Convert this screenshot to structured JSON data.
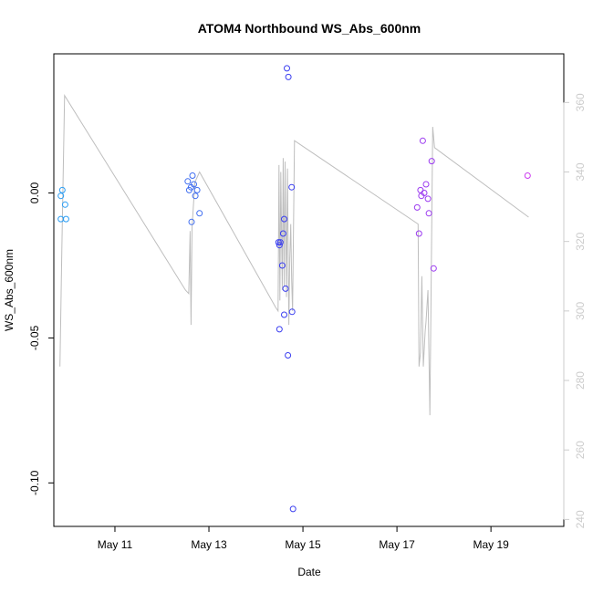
{
  "chart_data": {
    "type": "scatter",
    "title": "ATOM4 Northbound WS_Abs_600nm",
    "xlabel": "Date",
    "ylabel": "WS_Abs_600nm",
    "xlim": [
      9.7,
      20.55
    ],
    "ylim": [
      -0.115,
      0.048
    ],
    "y2lim": [
      238,
      374
    ],
    "x_ticks": [
      {
        "value": 11,
        "label": "May 11"
      },
      {
        "value": 13,
        "label": "May 13"
      },
      {
        "value": 15,
        "label": "May 15"
      },
      {
        "value": 17,
        "label": "May 17"
      },
      {
        "value": 19,
        "label": "May 19"
      }
    ],
    "y_ticks": [
      {
        "value": 0.0,
        "label": "0.00"
      },
      {
        "value": -0.05,
        "label": "-0.05"
      },
      {
        "value": -0.1,
        "label": "-0.10"
      }
    ],
    "y2_ticks": [
      {
        "value": 240,
        "label": "240"
      },
      {
        "value": 260,
        "label": "260"
      },
      {
        "value": 280,
        "label": "280"
      },
      {
        "value": 300,
        "label": "300"
      },
      {
        "value": 320,
        "label": "320"
      },
      {
        "value": 340,
        "label": "340"
      },
      {
        "value": 360,
        "label": "360"
      }
    ],
    "right_axis_color": "#cccccc",
    "line_color": "#bebebe",
    "grid": false,
    "points": [
      {
        "x": 9.85,
        "y": -0.009,
        "color": "#2a9df4"
      },
      {
        "x": 9.85,
        "y": -0.001,
        "color": "#2a9df4"
      },
      {
        "x": 9.88,
        "y": 0.001,
        "color": "#2a9df4"
      },
      {
        "x": 9.94,
        "y": -0.004,
        "color": "#2a9df4"
      },
      {
        "x": 9.96,
        "y": -0.009,
        "color": "#2a9df4"
      },
      {
        "x": 12.55,
        "y": 0.004,
        "color": "#3f6df0"
      },
      {
        "x": 12.58,
        "y": 0.001,
        "color": "#3f6df0"
      },
      {
        "x": 12.62,
        "y": 0.002,
        "color": "#3f6df0"
      },
      {
        "x": 12.65,
        "y": 0.006,
        "color": "#3f6df0"
      },
      {
        "x": 12.68,
        "y": 0.003,
        "color": "#3f6df0"
      },
      {
        "x": 12.71,
        "y": -0.001,
        "color": "#3f6df0"
      },
      {
        "x": 12.75,
        "y": 0.001,
        "color": "#3f6df0"
      },
      {
        "x": 12.63,
        "y": -0.01,
        "color": "#3f6df0"
      },
      {
        "x": 12.8,
        "y": -0.007,
        "color": "#3f6df0"
      },
      {
        "x": 14.48,
        "y": -0.017,
        "color": "#3a3ef0"
      },
      {
        "x": 14.5,
        "y": -0.018,
        "color": "#3a3ef0"
      },
      {
        "x": 14.52,
        "y": -0.017,
        "color": "#3a3ef0"
      },
      {
        "x": 14.5,
        "y": -0.047,
        "color": "#3a3ef0"
      },
      {
        "x": 14.56,
        "y": -0.025,
        "color": "#3a3ef0"
      },
      {
        "x": 14.58,
        "y": -0.014,
        "color": "#3a3ef0"
      },
      {
        "x": 14.6,
        "y": -0.009,
        "color": "#3a3ef0"
      },
      {
        "x": 14.6,
        "y": -0.042,
        "color": "#3a3ef0"
      },
      {
        "x": 14.63,
        "y": -0.033,
        "color": "#3a3ef0"
      },
      {
        "x": 14.66,
        "y": 0.043,
        "color": "#3a3ef0"
      },
      {
        "x": 14.69,
        "y": 0.04,
        "color": "#3a3ef0"
      },
      {
        "x": 14.68,
        "y": -0.056,
        "color": "#3a3ef0"
      },
      {
        "x": 14.76,
        "y": 0.002,
        "color": "#3a3ef0"
      },
      {
        "x": 14.77,
        "y": -0.041,
        "color": "#3a3ef0"
      },
      {
        "x": 14.79,
        "y": -0.109,
        "color": "#3a3ef0"
      },
      {
        "x": 17.43,
        "y": -0.005,
        "color": "#9b3af0"
      },
      {
        "x": 17.47,
        "y": -0.014,
        "color": "#9b3af0"
      },
      {
        "x": 17.5,
        "y": 0.001,
        "color": "#9b3af0"
      },
      {
        "x": 17.52,
        "y": -0.001,
        "color": "#9b3af0"
      },
      {
        "x": 17.55,
        "y": 0.018,
        "color": "#9b3af0"
      },
      {
        "x": 17.58,
        "y": 0.0,
        "color": "#9b3af0"
      },
      {
        "x": 17.62,
        "y": 0.003,
        "color": "#9b3af0"
      },
      {
        "x": 17.66,
        "y": -0.002,
        "color": "#9b3af0"
      },
      {
        "x": 17.68,
        "y": -0.007,
        "color": "#9b3af0"
      },
      {
        "x": 17.74,
        "y": 0.011,
        "color": "#9b3af0"
      },
      {
        "x": 17.78,
        "y": -0.026,
        "color": "#9b3af0"
      },
      {
        "x": 19.78,
        "y": 0.006,
        "color": "#cc3af0"
      }
    ],
    "line_series_y2": [
      [
        9.83,
        284
      ],
      [
        9.87,
        318
      ],
      [
        9.93,
        362
      ],
      [
        12.5,
        306
      ],
      [
        12.57,
        305
      ],
      [
        12.6,
        323
      ],
      [
        12.62,
        296
      ],
      [
        12.64,
        324
      ],
      [
        12.7,
        337
      ],
      [
        12.8,
        340
      ],
      [
        14.42,
        301
      ],
      [
        14.47,
        300
      ],
      [
        14.49,
        342
      ],
      [
        14.51,
        303
      ],
      [
        14.53,
        340
      ],
      [
        14.56,
        306
      ],
      [
        14.58,
        344
      ],
      [
        14.6,
        307
      ],
      [
        14.62,
        343
      ],
      [
        14.65,
        304
      ],
      [
        14.67,
        341
      ],
      [
        14.7,
        296
      ],
      [
        14.72,
        315
      ],
      [
        14.74,
        325
      ],
      [
        14.76,
        309
      ],
      [
        14.78,
        300
      ],
      [
        14.82,
        349
      ],
      [
        17.45,
        325
      ],
      [
        17.47,
        284
      ],
      [
        17.5,
        288
      ],
      [
        17.53,
        310
      ],
      [
        17.56,
        284
      ],
      [
        17.6,
        294
      ],
      [
        17.62,
        297
      ],
      [
        17.66,
        306
      ],
      [
        17.7,
        270
      ],
      [
        17.73,
        310
      ],
      [
        17.76,
        353
      ],
      [
        17.8,
        347
      ],
      [
        19.8,
        327
      ]
    ]
  }
}
